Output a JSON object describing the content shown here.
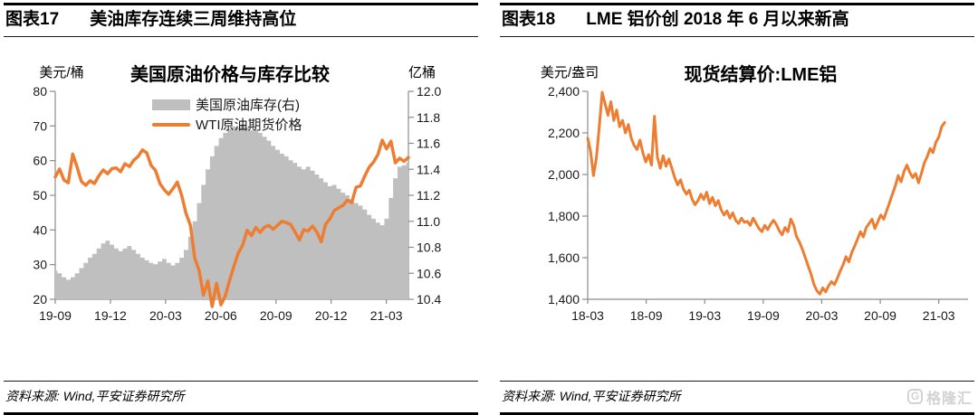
{
  "panels": [
    {
      "tag": "图表17",
      "title": "美油库存连续三周维持高位",
      "source": "资料来源: Wind,平安证券研究所"
    },
    {
      "tag": "图表18",
      "title": "LME 铝价创 2018 年 6 月以来新高",
      "source": "资料来源: Wind,平安证券研究所"
    }
  ],
  "watermark": {
    "icon": "G",
    "text": "格隆汇"
  },
  "chart_data": [
    {
      "type": "combo",
      "title": "美国原油价格与库存比较",
      "grid": false,
      "legend_position": "top-inside",
      "left_axis": {
        "label": "美元/桶",
        "min": 20,
        "max": 80,
        "tick_values": [
          80,
          70,
          60,
          50,
          40,
          30,
          20
        ],
        "tick_labels": [
          "80",
          "70",
          "60",
          "50",
          "40",
          "30",
          "20"
        ]
      },
      "right_axis": {
        "label": "亿桶",
        "min": 10.4,
        "max": 12.0,
        "tick_values": [
          12.0,
          11.8,
          11.6,
          11.4,
          11.2,
          11.0,
          10.8,
          10.6,
          10.4
        ],
        "tick_labels": [
          "12.0",
          "11.8",
          "11.6",
          "11.4",
          "11.2",
          "11.0",
          "10.8",
          "10.6",
          "10.4"
        ]
      },
      "x_axis": {
        "tick_labels": [
          "19-09",
          "19-12",
          "20-03",
          "20-06",
          "20-09",
          "20-12",
          "21-03"
        ],
        "tick_months": [
          0,
          3,
          6,
          9,
          12,
          15,
          18
        ],
        "total_months": 19.2,
        "data_months": 19.2
      },
      "series": [
        {
          "id": "us-crude-inventory-area",
          "name": "美国原油库存(右)",
          "type": "area",
          "axis": "right",
          "color": "#BFBFBF",
          "values": [
            10.62,
            10.6,
            10.57,
            10.55,
            10.57,
            10.6,
            10.64,
            10.68,
            10.72,
            10.75,
            10.79,
            10.83,
            10.85,
            10.82,
            10.79,
            10.77,
            10.79,
            10.81,
            10.78,
            10.75,
            10.72,
            10.7,
            10.68,
            10.67,
            10.69,
            10.71,
            10.68,
            10.66,
            10.68,
            10.72,
            10.78,
            10.88,
            11.0,
            11.14,
            11.28,
            11.4,
            11.5,
            11.58,
            11.64,
            11.68,
            11.71,
            11.73,
            11.72,
            11.74,
            11.72,
            11.7,
            11.71,
            11.68,
            11.65,
            11.62,
            11.58,
            11.55,
            11.52,
            11.5,
            11.47,
            11.45,
            11.42,
            11.4,
            11.42,
            11.39,
            11.36,
            11.33,
            11.3,
            11.27,
            11.28,
            11.25,
            11.22,
            11.2,
            11.17,
            11.14,
            11.12,
            11.09,
            11.05,
            11.02,
            10.99,
            10.97,
            11.02,
            11.18,
            11.33,
            11.42,
            11.43,
            11.45
          ]
        },
        {
          "id": "wti-price-line",
          "name": "WTI原油期货价格",
          "type": "line",
          "axis": "left",
          "color": "#ED7D31",
          "values": [
            55.3,
            57.6,
            54.4,
            53.6,
            61.9,
            58.2,
            54.0,
            52.9,
            54.2,
            53.4,
            55.6,
            57.3,
            56.2,
            57.7,
            57.9,
            56.8,
            59.1,
            58.3,
            60.1,
            61.2,
            63.1,
            62.2,
            58.6,
            57.2,
            53.4,
            51.6,
            50.3,
            51.9,
            53.8,
            50.0,
            44.8,
            41.3,
            31.8,
            28.3,
            21.2,
            25.3,
            17.9,
            24.6,
            18.4,
            21.0,
            25.5,
            29.6,
            33.4,
            35.6,
            39.9,
            38.4,
            40.7,
            39.3,
            40.8,
            41.3,
            40.2,
            41.4,
            42.5,
            42.1,
            41.6,
            39.4,
            37.1,
            40.1,
            39.7,
            41.1,
            39.4,
            36.6,
            41.6,
            43.2,
            45.6,
            46.4,
            47.1,
            48.6,
            47.9,
            52.3,
            52.7,
            55.6,
            58.1,
            59.6,
            61.7,
            65.9,
            63.4,
            65.6,
            59.4,
            60.7,
            59.8,
            60.9
          ]
        }
      ]
    },
    {
      "type": "line",
      "title": "现货结算价:LME铝",
      "grid": false,
      "left_axis": {
        "label": "美元/盎司",
        "min": 1400,
        "max": 2400,
        "tick_values": [
          2400,
          2200,
          2000,
          1800,
          1600,
          1400
        ],
        "tick_labels": [
          "2,400",
          "2,200",
          "2,000",
          "1,800",
          "1,600",
          "1,400"
        ]
      },
      "x_axis": {
        "tick_labels": [
          "18-03",
          "18-09",
          "19-03",
          "19-09",
          "20-03",
          "20-09",
          "21-03"
        ],
        "tick_months": [
          0,
          6,
          12,
          18,
          24,
          30,
          36
        ],
        "total_months": 39,
        "data_months": 36.6
      },
      "series": [
        {
          "id": "lme-aluminum-line",
          "name": "现货结算价:LME铝",
          "type": "line",
          "axis": "left",
          "color": "#ED7D31",
          "values": [
            2175,
            2110,
            1995,
            2080,
            2230,
            2395,
            2340,
            2285,
            2350,
            2260,
            2310,
            2230,
            2260,
            2200,
            2240,
            2175,
            2140,
            2120,
            2165,
            2105,
            2060,
            2095,
            2045,
            2280,
            2085,
            2030,
            2090,
            2040,
            2075,
            2030,
            1985,
            1950,
            1975,
            1930,
            1905,
            1925,
            1880,
            1855,
            1875,
            1905,
            1880,
            1915,
            1860,
            1890,
            1850,
            1875,
            1830,
            1805,
            1825,
            1790,
            1815,
            1780,
            1765,
            1790,
            1770,
            1775,
            1755,
            1790,
            1765,
            1740,
            1725,
            1755,
            1735,
            1760,
            1780,
            1760,
            1730,
            1710,
            1745,
            1725,
            1785,
            1755,
            1700,
            1675,
            1640,
            1600,
            1560,
            1520,
            1470,
            1440,
            1425,
            1455,
            1435,
            1465,
            1485,
            1470,
            1500,
            1535,
            1565,
            1605,
            1580,
            1625,
            1655,
            1690,
            1725,
            1700,
            1745,
            1765,
            1785,
            1740,
            1775,
            1805,
            1785,
            1825,
            1865,
            1905,
            1945,
            1995,
            1965,
            2015,
            2045,
            2010,
            1985,
            2005,
            1960,
            2005,
            2055,
            2085,
            2125,
            2105,
            2155,
            2180,
            2230,
            2250
          ]
        }
      ]
    }
  ]
}
